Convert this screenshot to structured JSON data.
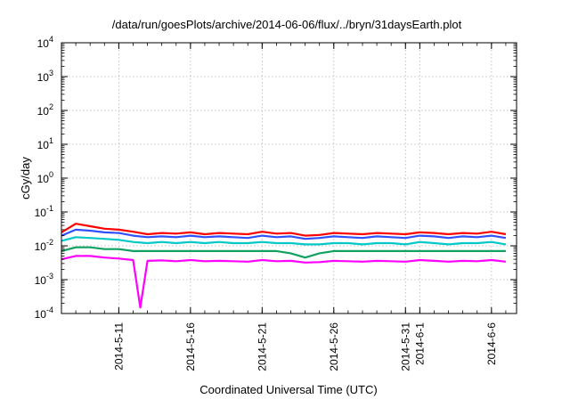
{
  "chart_data": {
    "type": "line",
    "title": "/data/run/goesPlots/archive/2014-06-06/flux/../bryn/31daysEarth.plot",
    "xlabel": "Coordinated Universal Time (UTC)",
    "ylabel": "cGy/day",
    "x_range": [
      "2014-05-07",
      "2014-06-07T18:00"
    ],
    "ylim": [
      0.0001,
      10000
    ],
    "yscale": "log",
    "y_tick_labels": [
      {
        "base": "10",
        "exp": "-4",
        "value": 0.0001
      },
      {
        "base": "10",
        "exp": "-3",
        "value": 0.001
      },
      {
        "base": "10",
        "exp": "-2",
        "value": 0.01
      },
      {
        "base": "10",
        "exp": "-1",
        "value": 0.1
      },
      {
        "base": "10",
        "exp": "0",
        "value": 1
      },
      {
        "base": "10",
        "exp": "1",
        "value": 10
      },
      {
        "base": "10",
        "exp": "2",
        "value": 100
      },
      {
        "base": "10",
        "exp": "3",
        "value": 1000
      },
      {
        "base": "10",
        "exp": "4",
        "value": 10000
      }
    ],
    "x_tick_labels": [
      {
        "label": "2014-5-11",
        "date": "2014-05-11"
      },
      {
        "label": "2014-5-16",
        "date": "2014-05-16"
      },
      {
        "label": "2014-5-21",
        "date": "2014-05-21"
      },
      {
        "label": "2014-5-26",
        "date": "2014-05-26"
      },
      {
        "label": "2014-5-31",
        "date": "2014-05-31"
      },
      {
        "label": "2014-6-1",
        "date": "2014-06-01"
      },
      {
        "label": "2014-6-6",
        "date": "2014-06-06"
      }
    ],
    "grid": true,
    "legend": "none",
    "series": [
      {
        "color": "#ff0000",
        "values": [
          [
            "2014-05-07",
            0.025
          ],
          [
            "2014-05-08",
            0.045
          ],
          [
            "2014-05-09",
            0.038
          ],
          [
            "2014-05-10",
            0.032
          ],
          [
            "2014-05-11",
            0.03
          ],
          [
            "2014-05-12",
            0.026
          ],
          [
            "2014-05-13",
            0.022
          ],
          [
            "2014-05-14",
            0.024
          ],
          [
            "2014-05-15",
            0.023
          ],
          [
            "2014-05-16",
            0.025
          ],
          [
            "2014-05-17",
            0.022
          ],
          [
            "2014-05-18",
            0.024
          ],
          [
            "2014-05-19",
            0.023
          ],
          [
            "2014-05-20",
            0.022
          ],
          [
            "2014-05-21",
            0.026
          ],
          [
            "2014-05-22",
            0.023
          ],
          [
            "2014-05-23",
            0.024
          ],
          [
            "2014-05-24",
            0.02
          ],
          [
            "2014-05-25",
            0.021
          ],
          [
            "2014-05-26",
            0.024
          ],
          [
            "2014-05-27",
            0.023
          ],
          [
            "2014-05-28",
            0.022
          ],
          [
            "2014-05-29",
            0.024
          ],
          [
            "2014-05-30",
            0.023
          ],
          [
            "2014-05-31",
            0.022
          ],
          [
            "2014-06-01",
            0.025
          ],
          [
            "2014-06-02",
            0.024
          ],
          [
            "2014-06-03",
            0.022
          ],
          [
            "2014-06-04",
            0.024
          ],
          [
            "2014-06-05",
            0.023
          ],
          [
            "2014-06-06",
            0.026
          ],
          [
            "2014-06-07",
            0.022
          ]
        ]
      },
      {
        "color": "#3050ff",
        "values": [
          [
            "2014-05-07",
            0.02
          ],
          [
            "2014-05-08",
            0.03
          ],
          [
            "2014-05-09",
            0.028
          ],
          [
            "2014-05-10",
            0.025
          ],
          [
            "2014-05-11",
            0.024
          ],
          [
            "2014-05-12",
            0.02
          ],
          [
            "2014-05-13",
            0.018
          ],
          [
            "2014-05-14",
            0.019
          ],
          [
            "2014-05-15",
            0.018
          ],
          [
            "2014-05-16",
            0.02
          ],
          [
            "2014-05-17",
            0.018
          ],
          [
            "2014-05-18",
            0.019
          ],
          [
            "2014-05-19",
            0.018
          ],
          [
            "2014-05-20",
            0.017
          ],
          [
            "2014-05-21",
            0.02
          ],
          [
            "2014-05-22",
            0.018
          ],
          [
            "2014-05-23",
            0.019
          ],
          [
            "2014-05-24",
            0.016
          ],
          [
            "2014-05-25",
            0.017
          ],
          [
            "2014-05-26",
            0.019
          ],
          [
            "2014-05-27",
            0.018
          ],
          [
            "2014-05-28",
            0.017
          ],
          [
            "2014-05-29",
            0.019
          ],
          [
            "2014-05-30",
            0.018
          ],
          [
            "2014-05-31",
            0.017
          ],
          [
            "2014-06-01",
            0.02
          ],
          [
            "2014-06-02",
            0.019
          ],
          [
            "2014-06-03",
            0.017
          ],
          [
            "2014-06-04",
            0.019
          ],
          [
            "2014-06-05",
            0.018
          ],
          [
            "2014-06-06",
            0.02
          ],
          [
            "2014-06-07",
            0.017
          ]
        ]
      },
      {
        "color": "#00c8c8",
        "values": [
          [
            "2014-05-07",
            0.014
          ],
          [
            "2014-05-08",
            0.018
          ],
          [
            "2014-05-09",
            0.017
          ],
          [
            "2014-05-10",
            0.016
          ],
          [
            "2014-05-11",
            0.015
          ],
          [
            "2014-05-12",
            0.013
          ],
          [
            "2014-05-13",
            0.012
          ],
          [
            "2014-05-14",
            0.013
          ],
          [
            "2014-05-15",
            0.012
          ],
          [
            "2014-05-16",
            0.013
          ],
          [
            "2014-05-17",
            0.012
          ],
          [
            "2014-05-18",
            0.013
          ],
          [
            "2014-05-19",
            0.012
          ],
          [
            "2014-05-20",
            0.012
          ],
          [
            "2014-05-21",
            0.013
          ],
          [
            "2014-05-22",
            0.012
          ],
          [
            "2014-05-23",
            0.012
          ],
          [
            "2014-05-24",
            0.011
          ],
          [
            "2014-05-25",
            0.011
          ],
          [
            "2014-05-26",
            0.012
          ],
          [
            "2014-05-27",
            0.012
          ],
          [
            "2014-05-28",
            0.011
          ],
          [
            "2014-05-29",
            0.012
          ],
          [
            "2014-05-30",
            0.012
          ],
          [
            "2014-05-31",
            0.011
          ],
          [
            "2014-06-01",
            0.013
          ],
          [
            "2014-06-02",
            0.012
          ],
          [
            "2014-06-03",
            0.011
          ],
          [
            "2014-06-04",
            0.012
          ],
          [
            "2014-06-05",
            0.012
          ],
          [
            "2014-06-06",
            0.013
          ],
          [
            "2014-06-07",
            0.011
          ]
        ]
      },
      {
        "color": "#10a060",
        "values": [
          [
            "2014-05-07",
            0.007
          ],
          [
            "2014-05-08",
            0.009
          ],
          [
            "2014-05-09",
            0.009
          ],
          [
            "2014-05-10",
            0.008
          ],
          [
            "2014-05-11",
            0.008
          ],
          [
            "2014-05-12",
            0.007
          ],
          [
            "2014-05-13",
            0.007
          ],
          [
            "2014-05-14",
            0.007
          ],
          [
            "2014-05-15",
            0.007
          ],
          [
            "2014-05-16",
            0.007
          ],
          [
            "2014-05-17",
            0.007
          ],
          [
            "2014-05-18",
            0.007
          ],
          [
            "2014-05-19",
            0.007
          ],
          [
            "2014-05-20",
            0.007
          ],
          [
            "2014-05-21",
            0.007
          ],
          [
            "2014-05-22",
            0.007
          ],
          [
            "2014-05-23",
            0.006
          ],
          [
            "2014-05-24",
            0.0045
          ],
          [
            "2014-05-25",
            0.006
          ],
          [
            "2014-05-26",
            0.007
          ],
          [
            "2014-05-27",
            0.007
          ],
          [
            "2014-05-28",
            0.007
          ],
          [
            "2014-05-29",
            0.007
          ],
          [
            "2014-05-30",
            0.007
          ],
          [
            "2014-05-31",
            0.007
          ],
          [
            "2014-06-01",
            0.007
          ],
          [
            "2014-06-02",
            0.007
          ],
          [
            "2014-06-03",
            0.007
          ],
          [
            "2014-06-04",
            0.007
          ],
          [
            "2014-06-05",
            0.007
          ],
          [
            "2014-06-06",
            0.007
          ],
          [
            "2014-06-07",
            0.007
          ]
        ]
      },
      {
        "color": "#ff00ff",
        "values": [
          [
            "2014-05-07",
            0.004
          ],
          [
            "2014-05-08",
            0.005
          ],
          [
            "2014-05-09",
            0.005
          ],
          [
            "2014-05-10",
            0.0045
          ],
          [
            "2014-05-11",
            0.0042
          ],
          [
            "2014-05-12",
            0.0038
          ],
          [
            "2014-05-12T12:00",
            0.00015
          ],
          [
            "2014-05-13",
            0.0036
          ],
          [
            "2014-05-14",
            0.0037
          ],
          [
            "2014-05-15",
            0.0035
          ],
          [
            "2014-05-16",
            0.0038
          ],
          [
            "2014-05-17",
            0.0035
          ],
          [
            "2014-05-18",
            0.0036
          ],
          [
            "2014-05-19",
            0.0035
          ],
          [
            "2014-05-20",
            0.0034
          ],
          [
            "2014-05-21",
            0.0038
          ],
          [
            "2014-05-22",
            0.0035
          ],
          [
            "2014-05-23",
            0.0036
          ],
          [
            "2014-05-24",
            0.0032
          ],
          [
            "2014-05-25",
            0.0033
          ],
          [
            "2014-05-26",
            0.0036
          ],
          [
            "2014-05-27",
            0.0035
          ],
          [
            "2014-05-28",
            0.0034
          ],
          [
            "2014-05-29",
            0.0036
          ],
          [
            "2014-05-30",
            0.0035
          ],
          [
            "2014-05-31",
            0.0034
          ],
          [
            "2014-06-01",
            0.0038
          ],
          [
            "2014-06-02",
            0.0036
          ],
          [
            "2014-06-03",
            0.0034
          ],
          [
            "2014-06-04",
            0.0036
          ],
          [
            "2014-06-05",
            0.0035
          ],
          [
            "2014-06-06",
            0.0038
          ],
          [
            "2014-06-07",
            0.0034
          ]
        ]
      }
    ]
  }
}
